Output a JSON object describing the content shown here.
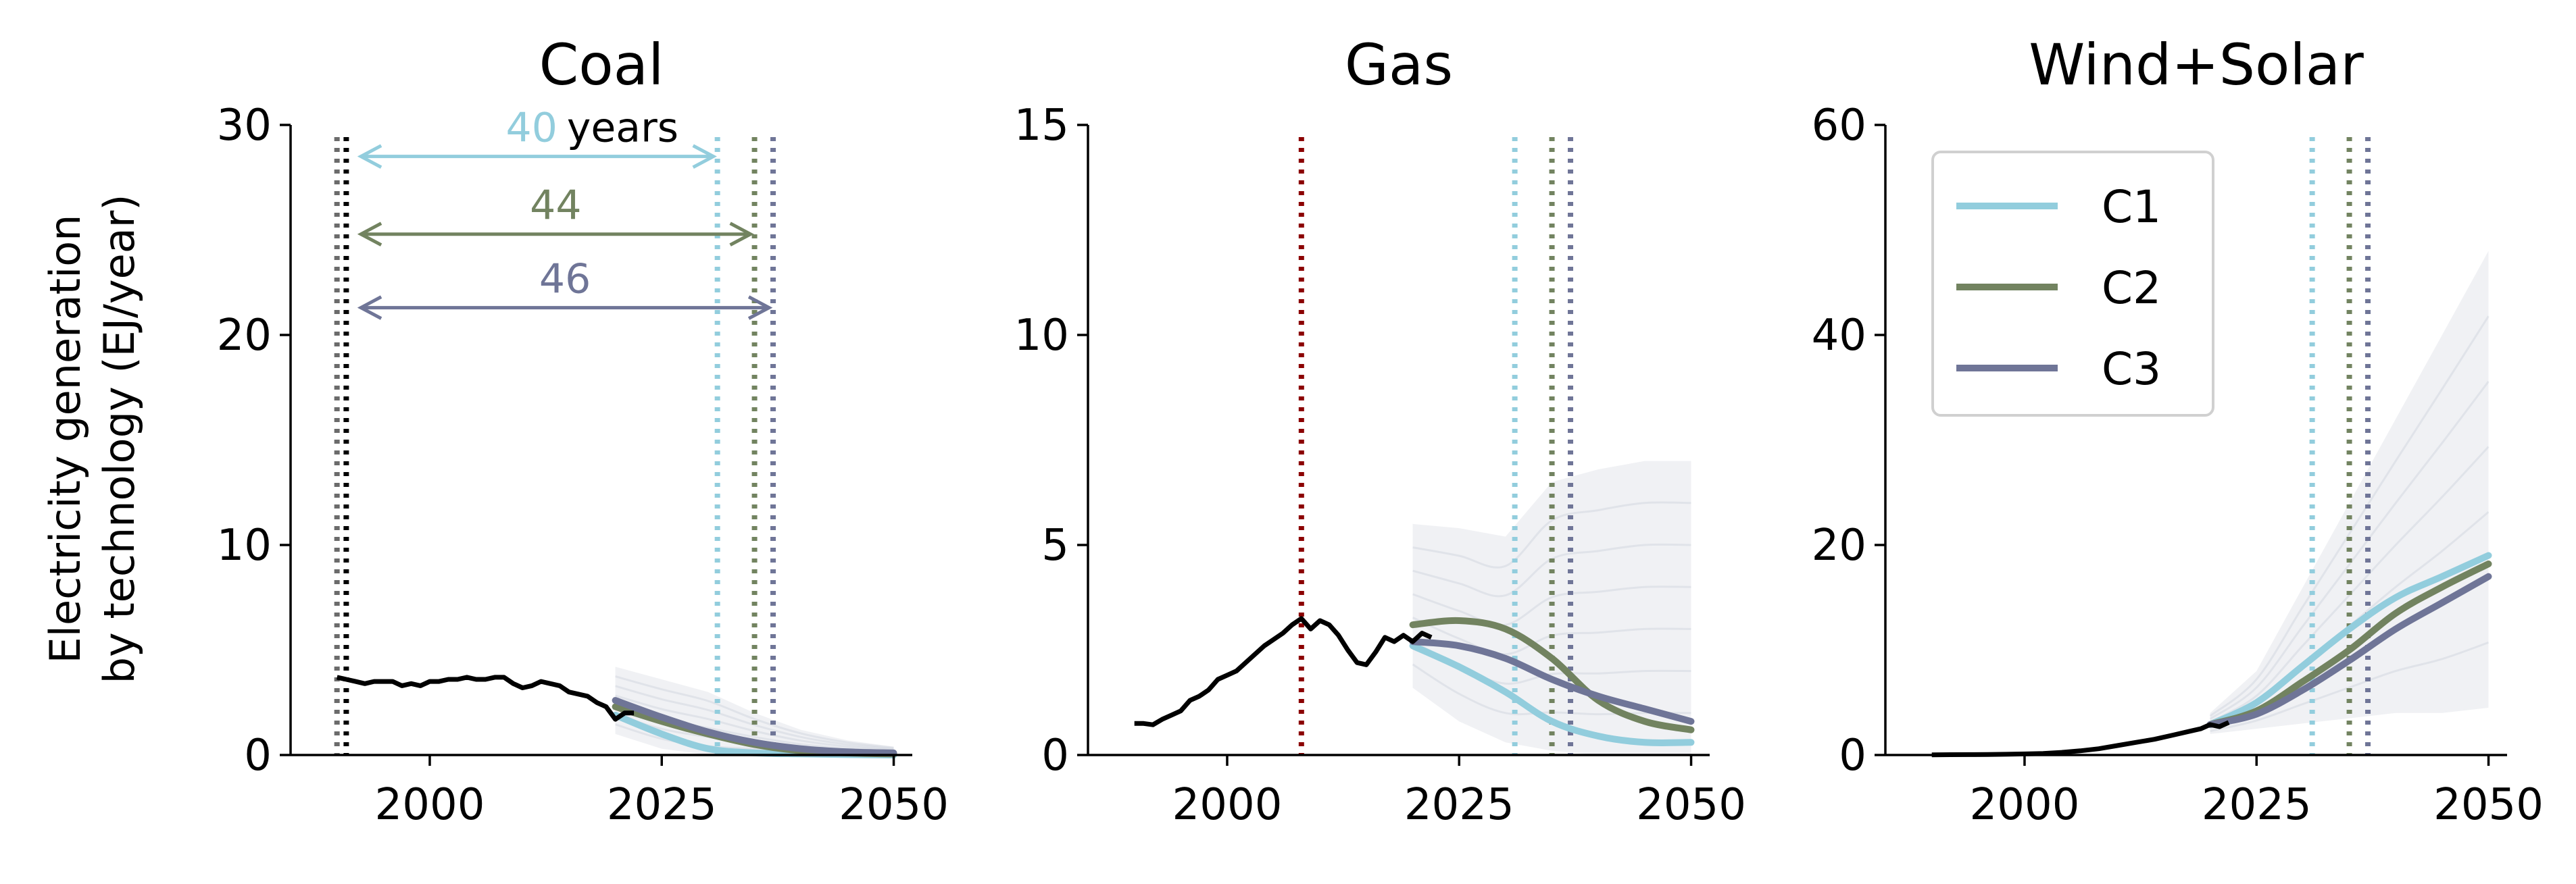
{
  "figure": {
    "ylabel_line1": "Electricity generation",
    "ylabel_line2": "by technology (EJ/year)"
  },
  "colors": {
    "C1": "#92cddd",
    "C2": "#728360",
    "C3": "#6f7597",
    "historical": "#000000",
    "gas_marker": "#8b0000",
    "coal_marker_dark": "#000000",
    "coal_marker_grey": "#6b6b6b",
    "ensemble": "#aab0c4"
  },
  "legend": {
    "placement": "upper-left of Wind+Solar panel",
    "entries": [
      {
        "key": "C1",
        "label": "C1"
      },
      {
        "key": "C2",
        "label": "C2"
      },
      {
        "key": "C3",
        "label": "C3"
      }
    ]
  },
  "annotations": {
    "coal_spans": [
      {
        "value": "40",
        "suffix": "years",
        "color_key": "C1",
        "from_year": 1992,
        "to_year": 2031,
        "y": 28.5
      },
      {
        "value": "44",
        "suffix": "",
        "color_key": "C2",
        "from_year": 1992,
        "to_year": 2035,
        "y": 24.8
      },
      {
        "value": "46",
        "suffix": "",
        "color_key": "C3",
        "from_year": 1992,
        "to_year": 2037,
        "y": 21.3
      }
    ]
  },
  "chart_data": [
    {
      "type": "line",
      "title": "Coal",
      "xlabel": "",
      "ylabel": "Electricity generation by technology (EJ/year)",
      "xlim": [
        1985,
        2052
      ],
      "ylim": [
        0,
        30
      ],
      "xticks": [
        2000,
        2025,
        2050
      ],
      "yticks": [
        0,
        10,
        20,
        30
      ],
      "grid": false,
      "vlines": [
        {
          "x": 1990,
          "color_key": "coal_marker_grey"
        },
        {
          "x": 1991,
          "color_key": "coal_marker_dark"
        },
        {
          "x": 2031,
          "color_key": "C1"
        },
        {
          "x": 2035,
          "color_key": "C2"
        },
        {
          "x": 2037,
          "color_key": "C3"
        }
      ],
      "historical": {
        "x": [
          1990,
          1991,
          1992,
          1993,
          1994,
          1995,
          1996,
          1997,
          1998,
          1999,
          2000,
          2001,
          2002,
          2003,
          2004,
          2005,
          2006,
          2007,
          2008,
          2009,
          2010,
          2011,
          2012,
          2013,
          2014,
          2015,
          2016,
          2017,
          2018,
          2019,
          2020,
          2021,
          2022
        ],
        "y": [
          3.7,
          3.6,
          3.5,
          3.4,
          3.5,
          3.5,
          3.5,
          3.3,
          3.4,
          3.3,
          3.5,
          3.5,
          3.6,
          3.6,
          3.7,
          3.6,
          3.6,
          3.7,
          3.7,
          3.4,
          3.2,
          3.3,
          3.5,
          3.4,
          3.3,
          3.0,
          2.9,
          2.8,
          2.5,
          2.3,
          1.7,
          2.0,
          2.0
        ]
      },
      "series": [
        {
          "name": "C1",
          "x": [
            2020,
            2025,
            2030,
            2035,
            2040,
            2045,
            2050
          ],
          "values": [
            1.9,
            1.0,
            0.3,
            0.1,
            0.05,
            0.02,
            0.0
          ]
        },
        {
          "name": "C2",
          "x": [
            2020,
            2025,
            2030,
            2035,
            2040,
            2045,
            2050
          ],
          "values": [
            2.3,
            1.6,
            1.0,
            0.5,
            0.2,
            0.1,
            0.05
          ]
        },
        {
          "name": "C3",
          "x": [
            2020,
            2025,
            2030,
            2035,
            2040,
            2045,
            2050
          ],
          "values": [
            2.6,
            1.8,
            1.1,
            0.6,
            0.3,
            0.15,
            0.1
          ]
        }
      ],
      "ensemble_band": {
        "x": [
          2020,
          2025,
          2030,
          2035,
          2040,
          2045,
          2050
        ],
        "low": [
          1.0,
          0.3,
          0.0,
          0.0,
          0.0,
          0.0,
          0.0
        ],
        "high": [
          4.2,
          3.6,
          3.0,
          2.0,
          1.2,
          0.7,
          0.4
        ]
      }
    },
    {
      "type": "line",
      "title": "Gas",
      "xlabel": "",
      "ylabel": "",
      "xlim": [
        1985,
        2052
      ],
      "ylim": [
        0,
        15
      ],
      "xticks": [
        2000,
        2025,
        2050
      ],
      "yticks": [
        0,
        5,
        10,
        15
      ],
      "grid": false,
      "vlines": [
        {
          "x": 2008,
          "color_key": "gas_marker"
        },
        {
          "x": 2031,
          "color_key": "C1"
        },
        {
          "x": 2035,
          "color_key": "C2"
        },
        {
          "x": 2037,
          "color_key": "C3"
        }
      ],
      "historical": {
        "x": [
          1990,
          1991,
          1992,
          1993,
          1994,
          1995,
          1996,
          1997,
          1998,
          1999,
          2000,
          2001,
          2002,
          2003,
          2004,
          2005,
          2006,
          2007,
          2008,
          2009,
          2010,
          2011,
          2012,
          2013,
          2014,
          2015,
          2016,
          2017,
          2018,
          2019,
          2020,
          2021,
          2022
        ],
        "y": [
          0.75,
          0.75,
          0.72,
          0.85,
          0.95,
          1.05,
          1.3,
          1.4,
          1.55,
          1.8,
          1.9,
          2.0,
          2.2,
          2.4,
          2.6,
          2.75,
          2.9,
          3.1,
          3.25,
          3.0,
          3.2,
          3.1,
          2.85,
          2.5,
          2.2,
          2.15,
          2.45,
          2.8,
          2.7,
          2.85,
          2.7,
          2.9,
          2.8
        ]
      },
      "series": [
        {
          "name": "C1",
          "x": [
            2020,
            2025,
            2030,
            2035,
            2040,
            2045,
            2050
          ],
          "values": [
            2.6,
            2.1,
            1.5,
            0.8,
            0.45,
            0.3,
            0.3
          ]
        },
        {
          "name": "C2",
          "x": [
            2020,
            2025,
            2030,
            2035,
            2040,
            2045,
            2050
          ],
          "values": [
            3.1,
            3.2,
            3.0,
            2.3,
            1.3,
            0.8,
            0.6
          ]
        },
        {
          "name": "C3",
          "x": [
            2020,
            2025,
            2030,
            2035,
            2040,
            2045,
            2050
          ],
          "values": [
            2.7,
            2.6,
            2.3,
            1.8,
            1.4,
            1.1,
            0.8
          ]
        }
      ],
      "ensemble_band": {
        "x": [
          2020,
          2025,
          2030,
          2035,
          2040,
          2045,
          2050
        ],
        "low": [
          1.6,
          0.8,
          0.3,
          0.1,
          0.0,
          0.0,
          0.0
        ],
        "high": [
          5.5,
          5.4,
          5.2,
          6.5,
          6.8,
          7.0,
          7.0
        ]
      }
    },
    {
      "type": "line",
      "title": "Wind+Solar",
      "xlabel": "",
      "ylabel": "",
      "xlim": [
        1985,
        2052
      ],
      "ylim": [
        0,
        60
      ],
      "xticks": [
        2000,
        2025,
        2050
      ],
      "yticks": [
        0,
        20,
        40,
        60
      ],
      "grid": false,
      "vlines": [
        {
          "x": 2031,
          "color_key": "C1"
        },
        {
          "x": 2035,
          "color_key": "C2"
        },
        {
          "x": 2037,
          "color_key": "C3"
        }
      ],
      "historical": {
        "x": [
          1990,
          1992,
          1994,
          1996,
          1998,
          2000,
          2002,
          2004,
          2006,
          2008,
          2010,
          2012,
          2014,
          2016,
          2018,
          2019,
          2020,
          2021,
          2022
        ],
        "y": [
          0.02,
          0.03,
          0.04,
          0.05,
          0.07,
          0.1,
          0.15,
          0.25,
          0.4,
          0.6,
          0.9,
          1.2,
          1.5,
          1.9,
          2.3,
          2.5,
          2.9,
          2.7,
          3.1
        ]
      },
      "series": [
        {
          "name": "C1",
          "x": [
            2020,
            2025,
            2030,
            2035,
            2040,
            2045,
            2050
          ],
          "values": [
            2.9,
            5.0,
            8.5,
            12.0,
            15.0,
            17.0,
            19.0
          ]
        },
        {
          "name": "C2",
          "x": [
            2020,
            2025,
            2030,
            2035,
            2040,
            2045,
            2050
          ],
          "values": [
            2.9,
            4.2,
            7.0,
            10.0,
            13.5,
            16.0,
            18.2
          ]
        },
        {
          "name": "C3",
          "x": [
            2020,
            2025,
            2030,
            2035,
            2040,
            2045,
            2050
          ],
          "values": [
            2.9,
            3.9,
            6.2,
            9.0,
            12.0,
            14.5,
            17.0
          ]
        }
      ],
      "ensemble_band": {
        "x": [
          2020,
          2025,
          2030,
          2035,
          2040,
          2045,
          2050
        ],
        "low": [
          2.0,
          2.5,
          3.0,
          3.5,
          4.0,
          4.0,
          4.5
        ],
        "high": [
          4.0,
          8.0,
          16.0,
          24.0,
          32.0,
          40.0,
          48.0
        ]
      }
    }
  ]
}
